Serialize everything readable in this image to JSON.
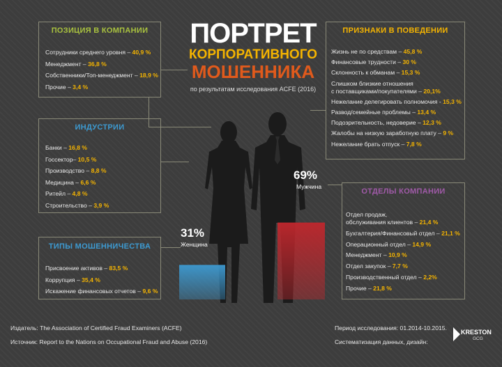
{
  "title": {
    "line1": "ПОРТРЕТ",
    "line2": "КОРПОРАТИВНОГО",
    "line3": "МОШЕННИКА",
    "subtitle": "по результатам исследования ACFE (2016)"
  },
  "position": {
    "heading": "ПОЗИЦИЯ В КОМПАНИИ",
    "items": [
      {
        "label": "Сотрудники среднего уровня –",
        "value": "40,9 %"
      },
      {
        "label": "Менеджмент –",
        "value": "36,8 %"
      },
      {
        "label": "Собственники/Топ-менеджмент –",
        "value": "18,9 %"
      },
      {
        "label": "Прочие –",
        "value": "3,4 %"
      }
    ]
  },
  "industries": {
    "heading": "ИНДУСТРИИ",
    "items": [
      {
        "label": "Банки –",
        "value": "16,8 %"
      },
      {
        "label": "Госсектор–",
        "value": "10,5 %"
      },
      {
        "label": "Производство –",
        "value": "8,8 %"
      },
      {
        "label": "Медицина –",
        "value": "6,6 %"
      },
      {
        "label": "Ритейл –",
        "value": "4,8 %"
      },
      {
        "label": "Строительство –",
        "value": "3,9 %"
      }
    ]
  },
  "fraud_types": {
    "heading": "ТИПЫ МОШЕННИЧЕСТВА",
    "items": [
      {
        "label": "Присвоение активов –",
        "value": "83,5 %"
      },
      {
        "label": "Коррупция –",
        "value": "35,4 %"
      },
      {
        "label": "Искажение финансовых отчетов –",
        "value": "9,6 %"
      }
    ]
  },
  "behavior": {
    "heading": "ПРИЗНАКИ В ПОВЕДЕНИИ",
    "items": [
      {
        "label": "Жизнь не по средствам –",
        "value": "45,8 %"
      },
      {
        "label": "Финансовые трудности –",
        "value": "30 %"
      },
      {
        "label": "Склонность к обманам –",
        "value": "15,3 %"
      },
      {
        "label": "Слишком близкие отношения\nс поставщиками/покупателями –",
        "value": "20,1%"
      },
      {
        "label": "Нежелание делегировать полномочия -",
        "value": "15,3 %"
      },
      {
        "label": "Развод/семейные проблемы –",
        "value": "13,4 %"
      },
      {
        "label": "Подозрительность, недоверие –",
        "value": "12,3 %"
      },
      {
        "label": "Жалобы на низкую заработную плату –",
        "value": "9 %"
      },
      {
        "label": "Нежелание брать отпуск –",
        "value": "7,8 %"
      }
    ]
  },
  "departments": {
    "heading": "ОТДЕЛЫ КОМПАНИИ",
    "items": [
      {
        "label": "Отдел продаж,\nобслуживания клиентов –",
        "value": "21,4 %"
      },
      {
        "label": "Бухгалтерия/Финансовый отдел –",
        "value": "21,1 %"
      },
      {
        "label": "Операционный отдел –",
        "value": "14,9 %"
      },
      {
        "label": "Менеджмент –",
        "value": "10,9 %"
      },
      {
        "label": "Отдел закупок –",
        "value": "7,7 %"
      },
      {
        "label": "Производственный отдел –",
        "value": "2,2%"
      },
      {
        "label": "Прочие –",
        "value": "21,8 %"
      }
    ]
  },
  "gender": {
    "female_pct": "31%",
    "female_label": "Женщина",
    "male_pct": "69%",
    "male_label": "Мужчина",
    "female_value": 31,
    "male_value": 69
  },
  "colors": {
    "yellow": "#f5b400",
    "green": "#a9c23f",
    "blue": "#3d9ad1",
    "purple": "#a05aa8",
    "red": "#c0272d",
    "orange": "#e05a1c"
  },
  "footer": {
    "publisher": "Издатель: The Association of Certified Fraud Examiners (ACFE)",
    "source": "Источник: Report to the Nations on Occupational Fraud and Abuse (2016)",
    "period": "Период исследования: 01.2014-10.2015.",
    "design": "Систематизация данных, дизайн:",
    "logo": "KRESTON",
    "logo_sub": "GCG"
  }
}
